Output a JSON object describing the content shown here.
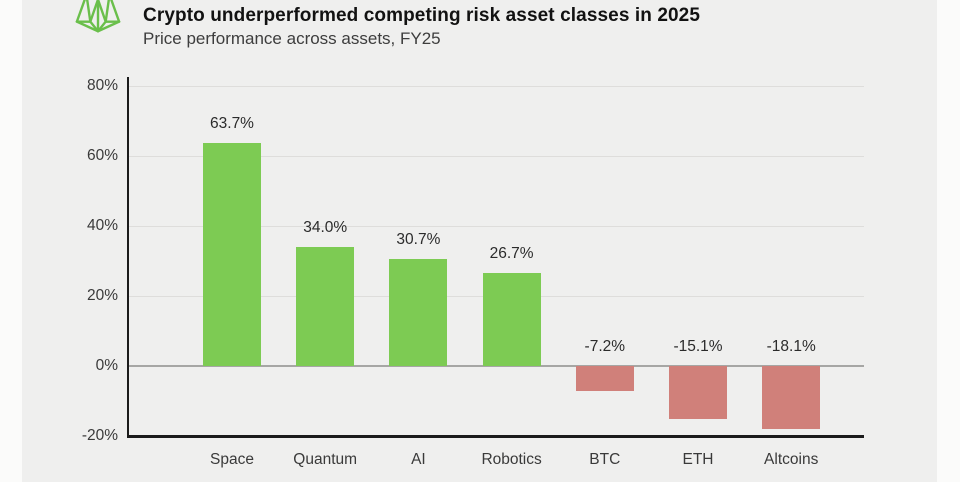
{
  "header": {
    "logo_name": "geometric-bird-logo",
    "title": "Crypto underperformed competing risk asset classes in 2025",
    "subtitle": "Price performance across assets, FY25"
  },
  "colors": {
    "positive_bar": "#7dcb53",
    "negative_bar": "#d0807a",
    "logo_green": "#6abf4b",
    "panel_bg": "#efefee",
    "outer_bg": "#fbfbfa",
    "gridline": "#dedddb",
    "zero_line": "#a6a6a4",
    "axis": "#1b1b1b"
  },
  "chart_data": {
    "type": "bar",
    "title": "Crypto underperformed competing risk asset classes in 2025",
    "subtitle": "Price performance across assets, FY25",
    "categories": [
      "Space",
      "Quantum",
      "AI",
      "Robotics",
      "BTC",
      "ETH",
      "Altcoins"
    ],
    "values": [
      63.7,
      34.0,
      30.7,
      26.7,
      -7.2,
      -15.1,
      -18.1
    ],
    "value_labels": [
      "63.7%",
      "34.0%",
      "30.7%",
      "26.7%",
      "-7.2%",
      "-15.1%",
      "-18.1%"
    ],
    "xlabel": "",
    "ylabel": "",
    "ylim": [
      -20,
      80
    ],
    "yticks": [
      80,
      60,
      40,
      20,
      0,
      -20
    ],
    "ytick_labels": [
      "80%",
      "60%",
      "40%",
      "20%",
      "0%",
      "-20%"
    ],
    "grid": true,
    "legend": false
  }
}
